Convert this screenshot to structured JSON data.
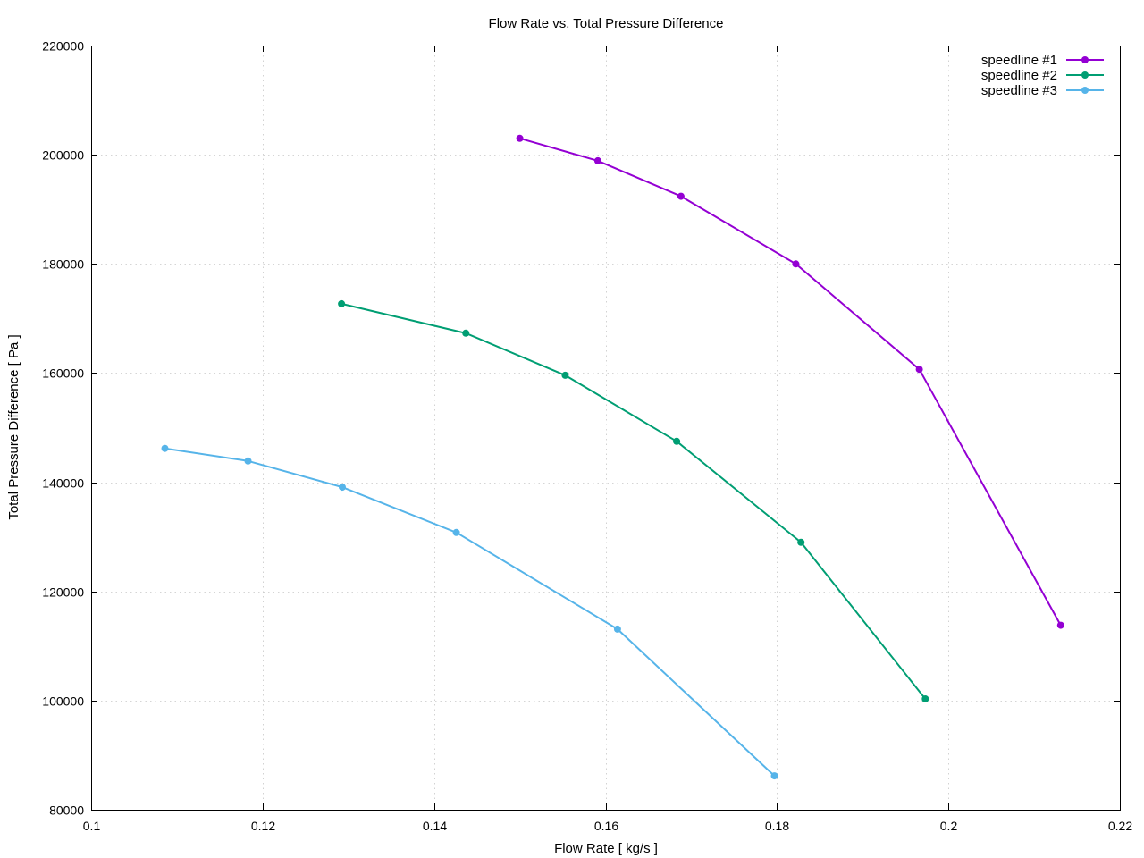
{
  "chart_data": {
    "type": "line",
    "title": "Flow Rate vs. Total Pressure Difference",
    "xlabel": "Flow Rate [ kg/s ]",
    "ylabel": "Total Pressure Difference [ Pa ]",
    "xlim": [
      0.1,
      0.22
    ],
    "ylim": [
      80000,
      220000
    ],
    "xticks": [
      0.1,
      0.12,
      0.14,
      0.16,
      0.18,
      0.2,
      0.22
    ],
    "xtick_labels": [
      "0.1",
      "0.12",
      "0.14",
      "0.16",
      "0.18",
      "0.2",
      "0.22"
    ],
    "yticks": [
      80000,
      100000,
      120000,
      140000,
      160000,
      180000,
      200000,
      220000
    ],
    "ytick_labels": [
      "80000",
      "100000",
      "120000",
      "140000",
      "160000",
      "180000",
      "200000",
      "220000"
    ],
    "grid": true,
    "legend_position": "top-right",
    "series": [
      {
        "name": "speedline #1",
        "color": "#9400d3",
        "x": [
          0.15,
          0.1591,
          0.1688,
          0.1822,
          0.1966,
          0.2131
        ],
        "y": [
          203000,
          198900,
          192400,
          180000,
          160700,
          113800
        ]
      },
      {
        "name": "speedline #2",
        "color": "#009e73",
        "x": [
          0.1292,
          0.1437,
          0.1553,
          0.1683,
          0.1828,
          0.1973
        ],
        "y": [
          172700,
          167300,
          159600,
          147500,
          129000,
          100300
        ]
      },
      {
        "name": "speedline #3",
        "color": "#56b4e9",
        "x": [
          0.1086,
          0.1183,
          0.1293,
          0.1426,
          0.1614,
          0.1797
        ],
        "y": [
          146200,
          143900,
          139100,
          130800,
          113100,
          86200
        ]
      }
    ]
  }
}
